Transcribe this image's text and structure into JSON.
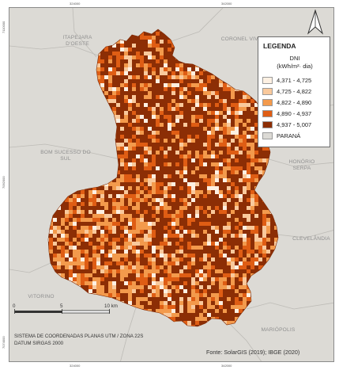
{
  "map": {
    "municipalities": [
      {
        "name": "ITAPEJARA\nD'OESTE",
        "id": "itapejara"
      },
      {
        "name": "CORONEL VIVIDA",
        "id": "coronel-vivida"
      },
      {
        "name": "BOM SUCESSO DO\nSUL",
        "id": "bom-sucesso"
      },
      {
        "name": "HONÓRIO\nSERPA",
        "id": "honorio-serpa"
      },
      {
        "name": "CLEVELÂNDIA",
        "id": "clevelandia"
      },
      {
        "name": "VITORINO",
        "id": "vitorino"
      },
      {
        "name": "MARIÓPOLIS",
        "id": "mariopolis"
      }
    ],
    "coords_top": [
      "324000",
      "342000"
    ],
    "coords_bottom": [
      "324000",
      "342000"
    ],
    "coords_left": [
      "7110000",
      "7092000",
      "7074000"
    ],
    "colors": {
      "background": "#dcdad5",
      "c1": "#fdf0e2",
      "c2": "#f9c99c",
      "c3": "#f39a4c",
      "c4": "#df5d14",
      "c5": "#8c2e05"
    }
  },
  "legend": {
    "title": "LEGENDA",
    "variable": "DNI",
    "unit": "(kWh/m²· dia)",
    "classes": [
      {
        "label": "4,371 - 4,725",
        "color": "#fdf0e2"
      },
      {
        "label": "4,725 - 4,822",
        "color": "#f9c99c"
      },
      {
        "label": "4,822 - 4,890",
        "color": "#f39a4c"
      },
      {
        "label": "4,890 - 4,937",
        "color": "#df5d14"
      },
      {
        "label": "4,937 - 5,007",
        "color": "#8c2e05"
      },
      {
        "label": "PARANÁ",
        "color": "#dcdad5"
      }
    ]
  },
  "scale": {
    "ticks": [
      "0",
      "5",
      "10 km"
    ]
  },
  "footer": {
    "crs": "SISTEMA DE COORDENADAS PLANAS UTM / ZONA 22S",
    "datum": "DATUM SIRGAS 2000",
    "source": "Fonte: SolarGIS (2019); IBGE (2020)"
  }
}
